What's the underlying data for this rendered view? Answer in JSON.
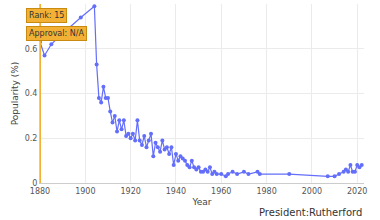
{
  "chart_data": {
    "type": "line",
    "x_label": "Year",
    "y_label": "Popularity (%)",
    "caption": "President:Rutherford",
    "annotations": [
      "Rank: 15",
      "Approval: N/A"
    ],
    "highlight_year": 1880,
    "color": "#636efa",
    "marker": "circle",
    "grid": true,
    "x": [
      1880,
      1882,
      1885,
      1888,
      1898,
      1904,
      1905,
      1906,
      1907,
      1908,
      1909,
      1910,
      1911,
      1912,
      1913,
      1914,
      1915,
      1916,
      1917,
      1918,
      1919,
      1920,
      1921,
      1922,
      1923,
      1924,
      1925,
      1926,
      1927,
      1928,
      1929,
      1930,
      1931,
      1932,
      1933,
      1934,
      1935,
      1936,
      1937,
      1938,
      1939,
      1940,
      1941,
      1942,
      1943,
      1944,
      1945,
      1946,
      1947,
      1948,
      1949,
      1950,
      1951,
      1952,
      1953,
      1954,
      1955,
      1956,
      1957,
      1958,
      1960,
      1962,
      1963,
      1965,
      1967,
      1970,
      1972,
      1976,
      1977,
      1990,
      2007,
      2010,
      2012,
      2014,
      2015,
      2016,
      2017,
      2018,
      2019,
      2020,
      2021,
      2022
    ],
    "values": [
      0.63,
      0.57,
      0.62,
      0.65,
      0.74,
      0.79,
      0.53,
      0.38,
      0.36,
      0.43,
      0.38,
      0.38,
      0.32,
      0.27,
      0.3,
      0.23,
      0.28,
      0.24,
      0.28,
      0.21,
      0.22,
      0.2,
      0.22,
      0.19,
      0.28,
      0.19,
      0.17,
      0.21,
      0.16,
      0.19,
      0.22,
      0.12,
      0.18,
      0.16,
      0.14,
      0.19,
      0.15,
      0.16,
      0.13,
      0.16,
      0.08,
      0.13,
      0.1,
      0.12,
      0.11,
      0.1,
      0.08,
      0.07,
      0.1,
      0.07,
      0.06,
      0.07,
      0.05,
      0.05,
      0.06,
      0.05,
      0.07,
      0.04,
      0.05,
      0.04,
      0.04,
      0.03,
      0.04,
      0.05,
      0.04,
      0.05,
      0.04,
      0.05,
      0.04,
      0.04,
      0.03,
      0.03,
      0.04,
      0.05,
      0.06,
      0.05,
      0.08,
      0.05,
      0.05,
      0.08,
      0.07,
      0.08
    ],
    "xlim": [
      1880,
      2023
    ],
    "xticks": [
      1880,
      1900,
      1920,
      1940,
      1960,
      1980,
      2000,
      2020
    ],
    "ylim": [
      0,
      0.8
    ],
    "yticks": [
      0,
      0.2,
      0.4,
      0.6
    ]
  }
}
